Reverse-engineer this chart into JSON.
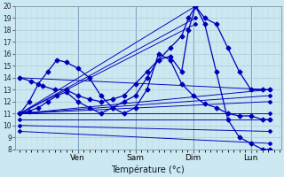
{
  "xlabel": "Température (°c)",
  "bg_color": "#cce8f0",
  "grid_color_major": "#aaccdd",
  "grid_color_minor": "#bbddee",
  "line_color": "#0000bb",
  "markersize": 2.5,
  "linewidth": 0.9,
  "ylim": [
    8,
    20
  ],
  "yticks": [
    8,
    9,
    10,
    11,
    12,
    13,
    14,
    15,
    16,
    17,
    18,
    19,
    20
  ],
  "xlim": [
    -0.02,
    1.13
  ],
  "day_positions": [
    0.25,
    0.5,
    0.75,
    1.0
  ],
  "day_labels": [
    "Ven",
    "Sam",
    "Dim",
    "Lun"
  ],
  "straight_lines": [
    {
      "x0": 0.0,
      "y0": 11.0,
      "x1": 0.76,
      "y1": 20.0
    },
    {
      "x0": 0.0,
      "y0": 11.0,
      "x1": 0.76,
      "y1": 19.0
    },
    {
      "x0": 0.0,
      "y0": 11.0,
      "x1": 0.76,
      "y1": 18.5
    },
    {
      "x0": 0.0,
      "y0": 11.0,
      "x1": 1.08,
      "y1": 13.0
    },
    {
      "x0": 0.0,
      "y0": 11.0,
      "x1": 1.08,
      "y1": 12.5
    },
    {
      "x0": 0.0,
      "y0": 11.0,
      "x1": 1.08,
      "y1": 12.0
    },
    {
      "x0": 0.0,
      "y0": 11.0,
      "x1": 1.08,
      "y1": 11.0
    },
    {
      "x0": 0.0,
      "y0": 10.5,
      "x1": 1.08,
      "y1": 10.5
    },
    {
      "x0": 0.0,
      "y0": 10.0,
      "x1": 1.08,
      "y1": 9.5
    },
    {
      "x0": 0.0,
      "y0": 9.5,
      "x1": 1.08,
      "y1": 8.5
    },
    {
      "x0": 0.0,
      "y0": 14.0,
      "x1": 1.08,
      "y1": 13.0
    }
  ],
  "wiggly_lines": [
    {
      "x": [
        0.0,
        0.04,
        0.08,
        0.12,
        0.16,
        0.2,
        0.25,
        0.3,
        0.35,
        0.4,
        0.45,
        0.5,
        0.55,
        0.6,
        0.65,
        0.7,
        0.75,
        0.8,
        0.85,
        0.9,
        0.95,
        1.0,
        1.05,
        1.08
      ],
      "y": [
        11.0,
        12.0,
        13.5,
        14.5,
        15.5,
        15.3,
        14.8,
        14.0,
        12.5,
        11.5,
        11.0,
        11.5,
        13.0,
        16.0,
        15.5,
        13.5,
        12.5,
        11.8,
        11.5,
        11.0,
        10.8,
        10.8,
        10.5,
        10.5
      ]
    },
    {
      "x": [
        0.0,
        0.04,
        0.08,
        0.12,
        0.16,
        0.2,
        0.25,
        0.3,
        0.35,
        0.4,
        0.45,
        0.5,
        0.55,
        0.6,
        0.65,
        0.7,
        0.73,
        0.76,
        0.8,
        0.85,
        0.9,
        0.95,
        1.0,
        1.05,
        1.08
      ],
      "y": [
        11.0,
        11.2,
        11.5,
        12.0,
        12.5,
        12.8,
        12.0,
        11.5,
        11.0,
        11.5,
        12.0,
        12.5,
        14.0,
        15.5,
        15.8,
        14.5,
        18.0,
        20.0,
        18.5,
        14.5,
        10.5,
        9.0,
        8.5,
        8.0,
        8.0
      ]
    },
    {
      "x": [
        0.0,
        0.05,
        0.1,
        0.15,
        0.2,
        0.25,
        0.3,
        0.35,
        0.4,
        0.45,
        0.5,
        0.55,
        0.6,
        0.65,
        0.7,
        0.73,
        0.76,
        0.8,
        0.85,
        0.9,
        0.95,
        1.0,
        1.05,
        1.08
      ],
      "y": [
        14.0,
        13.7,
        13.3,
        13.0,
        13.0,
        12.5,
        12.2,
        12.0,
        12.2,
        12.5,
        13.5,
        14.5,
        15.5,
        16.5,
        17.5,
        19.0,
        20.0,
        19.0,
        18.5,
        16.5,
        14.5,
        13.0,
        13.0,
        13.0
      ]
    }
  ]
}
